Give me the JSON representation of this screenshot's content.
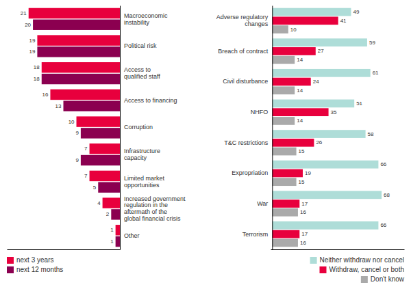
{
  "chart_data": [
    {
      "type": "bar",
      "orientation": "horizontal",
      "categories": [
        "Macroeconomic\ninstability",
        "Political risk",
        "Access to\nqualified staff",
        "Access to financing",
        "Corruption",
        "Infrastructure\ncapacity",
        "Limited market\nopportunities",
        "Increased government\nregulation in the\naftermath of the\nglobal financial crisis",
        "Other"
      ],
      "series": [
        {
          "name": "next 3 years",
          "color": "#e8003d",
          "values": [
            21,
            19,
            18,
            16,
            10,
            7,
            7,
            4,
            1
          ]
        },
        {
          "name": "next 12 months",
          "color": "#8b0050",
          "values": [
            20,
            19,
            18,
            13,
            9,
            9,
            5,
            2,
            1
          ]
        }
      ],
      "xlim": [
        0,
        26
      ],
      "tick_labels": "y",
      "data_labels": true,
      "legend": "lower left",
      "grid": false
    },
    {
      "type": "bar",
      "orientation": "horizontal",
      "categories": [
        "Adverse regulatory\nchanges",
        "Breach of contract",
        "Civil disturbance",
        "NHFO",
        "T&C restrictions",
        "Expropriation",
        "War",
        "Terrorism"
      ],
      "series": [
        {
          "name": "Neither withdraw nor cancel",
          "color": "#aeddd8",
          "values": [
            49,
            59,
            61,
            51,
            58,
            66,
            68,
            66
          ]
        },
        {
          "name": "Withdraw, cancel or both",
          "color": "#e8003d",
          "values": [
            41,
            27,
            24,
            35,
            26,
            19,
            17,
            17
          ]
        },
        {
          "name": "Don't know",
          "color": "#aaaaaa",
          "values": [
            10,
            14,
            14,
            14,
            15,
            15,
            16,
            16
          ]
        }
      ],
      "xlim": [
        -1,
        82
      ],
      "tick_labels": "y",
      "data_labels": true,
      "legend": "lower right",
      "grid": false
    }
  ]
}
